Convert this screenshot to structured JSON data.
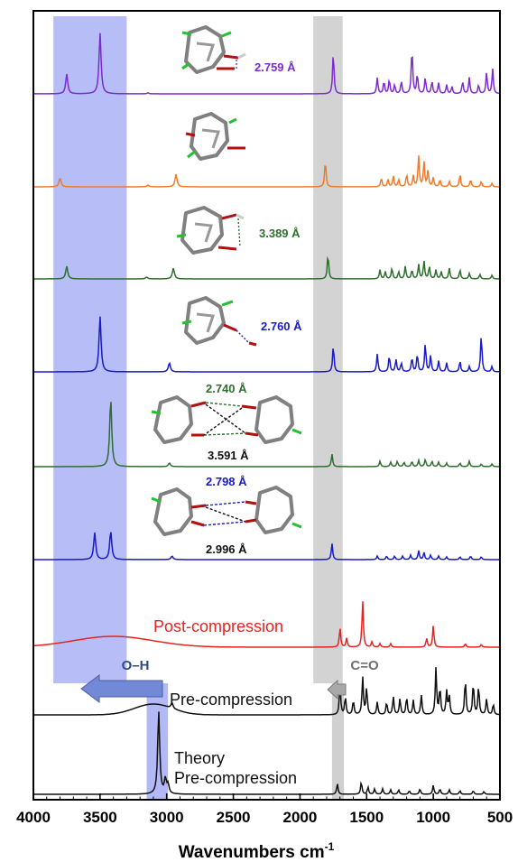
{
  "chart_data": {
    "type": "line",
    "xlabel": "Wavenumbers cm",
    "xlabel_superscript": "-1",
    "xlim": [
      4000,
      500
    ],
    "x_reversed": true,
    "xticks": [
      "4000",
      "3500",
      "3000",
      "2500",
      "2000",
      "1500",
      "1000",
      "500"
    ],
    "highlight_bands": [
      {
        "name": "O-H",
        "from": 3850,
        "to": 3300,
        "color": "#9fa8f4"
      },
      {
        "name": "C=O",
        "from": 1900,
        "to": 1680,
        "color": "#c4c4c4"
      },
      {
        "name": "O-H-theory",
        "from": 3150,
        "to": 2990,
        "color": "#9fa8f4"
      },
      {
        "name": "C=O-theory",
        "from": 1760,
        "to": 1670,
        "color": "#c4c4c4"
      }
    ],
    "arrows": [
      {
        "label": "O–H",
        "direction": "left",
        "color": "#7189d6",
        "label_color": "#2e4a80"
      },
      {
        "label": "C=O",
        "direction": "left",
        "color": "#a9a9a9",
        "label_color": "#6e6e6e"
      }
    ],
    "series": [
      {
        "name": "",
        "color": "#7d2ad4",
        "annotation": "2.759 Å",
        "peaks": [
          [
            3750,
            22
          ],
          [
            3500,
            68
          ],
          [
            3140,
            1
          ],
          [
            1750,
            47
          ],
          [
            1420,
            18
          ],
          [
            1370,
            14
          ],
          [
            1330,
            16
          ],
          [
            1290,
            10
          ],
          [
            1240,
            14
          ],
          [
            1160,
            52
          ],
          [
            1120,
            22
          ],
          [
            1060,
            18
          ],
          [
            1010,
            14
          ],
          [
            960,
            12
          ],
          [
            900,
            10
          ],
          [
            860,
            8
          ],
          [
            780,
            14
          ],
          [
            730,
            18
          ],
          [
            660,
            10
          ],
          [
            600,
            24
          ],
          [
            555,
            28
          ]
        ]
      },
      {
        "name": "",
        "color": "#f07a2a",
        "annotation": "",
        "peaks": [
          [
            3800,
            10
          ],
          [
            3140,
            2
          ],
          [
            2930,
            14
          ],
          [
            1810,
            30
          ],
          [
            1390,
            10
          ],
          [
            1340,
            8
          ],
          [
            1300,
            12
          ],
          [
            1260,
            8
          ],
          [
            1200,
            14
          ],
          [
            1150,
            12
          ],
          [
            1110,
            34
          ],
          [
            1070,
            28
          ],
          [
            1040,
            18
          ],
          [
            1000,
            10
          ],
          [
            950,
            8
          ],
          [
            880,
            6
          ],
          [
            800,
            14
          ],
          [
            720,
            8
          ],
          [
            640,
            6
          ],
          [
            560,
            4
          ]
        ]
      },
      {
        "name": "",
        "color": "#2e6e2e",
        "annotation": "3.389 Å",
        "peaks": [
          [
            3750,
            14
          ],
          [
            3150,
            2
          ],
          [
            2950,
            12
          ],
          [
            1790,
            28
          ],
          [
            1400,
            10
          ],
          [
            1360,
            8
          ],
          [
            1310,
            12
          ],
          [
            1260,
            8
          ],
          [
            1210,
            14
          ],
          [
            1160,
            10
          ],
          [
            1110,
            16
          ],
          [
            1070,
            20
          ],
          [
            1030,
            14
          ],
          [
            980,
            10
          ],
          [
            940,
            8
          ],
          [
            880,
            12
          ],
          [
            800,
            10
          ],
          [
            730,
            6
          ],
          [
            650,
            5
          ],
          [
            560,
            4
          ]
        ]
      },
      {
        "name": "",
        "color": "#1a1ac8",
        "annotation": "2.760 Å",
        "peaks": [
          [
            3500,
            62
          ],
          [
            2980,
            10
          ],
          [
            1750,
            30
          ],
          [
            1420,
            20
          ],
          [
            1330,
            18
          ],
          [
            1280,
            14
          ],
          [
            1240,
            10
          ],
          [
            1160,
            16
          ],
          [
            1120,
            20
          ],
          [
            1060,
            32
          ],
          [
            1020,
            18
          ],
          [
            960,
            12
          ],
          [
            900,
            10
          ],
          [
            800,
            12
          ],
          [
            730,
            6
          ],
          [
            640,
            42
          ],
          [
            560,
            6
          ]
        ]
      },
      {
        "name": "",
        "color": "#2e6e2e",
        "annotation": "2.740 Å / 3.591 Å",
        "peaks": [
          [
            3420,
            76
          ],
          [
            2980,
            4
          ],
          [
            1760,
            14
          ],
          [
            1400,
            6
          ],
          [
            1320,
            5
          ],
          [
            1270,
            6
          ],
          [
            1220,
            5
          ],
          [
            1160,
            6
          ],
          [
            1110,
            7
          ],
          [
            1060,
            8
          ],
          [
            1010,
            6
          ],
          [
            960,
            5
          ],
          [
            900,
            4
          ],
          [
            800,
            4
          ],
          [
            730,
            6
          ],
          [
            640,
            3
          ],
          [
            560,
            3
          ]
        ]
      },
      {
        "name": "",
        "color": "#1a1ac8",
        "annotation": "2.798 Å / 2.996 Å",
        "peaks": [
          [
            3540,
            30
          ],
          [
            3420,
            32
          ],
          [
            2960,
            4
          ],
          [
            1760,
            18
          ],
          [
            1420,
            4
          ],
          [
            1350,
            4
          ],
          [
            1290,
            4
          ],
          [
            1230,
            4
          ],
          [
            1170,
            5
          ],
          [
            1110,
            10
          ],
          [
            1070,
            8
          ],
          [
            1020,
            5
          ],
          [
            960,
            4
          ],
          [
            900,
            3
          ],
          [
            800,
            3
          ],
          [
            720,
            4
          ],
          [
            640,
            3
          ]
        ]
      },
      {
        "name": "Post-compression",
        "color": "#e8231f",
        "annotation": "",
        "broad": [
          [
            3400,
            420,
            12
          ]
        ],
        "peaks": [
          [
            1700,
            22
          ],
          [
            1650,
            10
          ],
          [
            1530,
            52
          ],
          [
            1460,
            6
          ],
          [
            1400,
            4
          ],
          [
            1320,
            4
          ],
          [
            1000,
            24
          ],
          [
            1050,
            10
          ],
          [
            760,
            4
          ],
          [
            640,
            3
          ]
        ]
      },
      {
        "name": "Pre-compression",
        "color": "#111111",
        "annotation": "",
        "broad": [
          [
            3100,
            200,
            12
          ]
        ],
        "peaks": [
          [
            2960,
            6
          ],
          [
            1700,
            34
          ],
          [
            1660,
            20
          ],
          [
            1600,
            16
          ],
          [
            1530,
            42
          ],
          [
            1500,
            30
          ],
          [
            1420,
            14
          ],
          [
            1350,
            14
          ],
          [
            1300,
            20
          ],
          [
            1250,
            18
          ],
          [
            1200,
            20
          ],
          [
            1150,
            16
          ],
          [
            1090,
            22
          ],
          [
            980,
            52
          ],
          [
            950,
            30
          ],
          [
            900,
            26
          ],
          [
            880,
            20
          ],
          [
            760,
            40
          ],
          [
            700,
            36
          ],
          [
            660,
            32
          ],
          [
            600,
            18
          ],
          [
            550,
            12
          ]
        ]
      },
      {
        "name": "Theory Pre-compression",
        "color": "#111111",
        "annotation": "",
        "peaks": [
          [
            3060,
            92
          ],
          [
            3010,
            16
          ],
          [
            2990,
            10
          ],
          [
            1720,
            12
          ],
          [
            1540,
            14
          ],
          [
            1490,
            8
          ],
          [
            1440,
            6
          ],
          [
            1380,
            6
          ],
          [
            1320,
            5
          ],
          [
            1260,
            5
          ],
          [
            1180,
            4
          ],
          [
            1100,
            6
          ],
          [
            1000,
            10
          ],
          [
            950,
            6
          ],
          [
            880,
            5
          ],
          [
            800,
            4
          ],
          [
            700,
            4
          ],
          [
            620,
            3
          ]
        ]
      }
    ]
  }
}
